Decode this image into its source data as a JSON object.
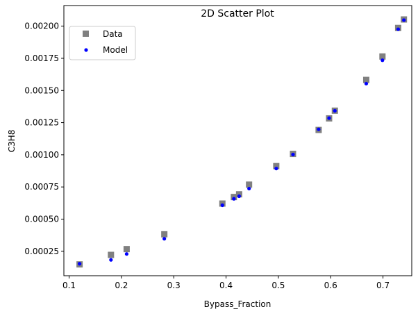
{
  "chart_data": {
    "type": "scatter",
    "title": "2D Scatter Plot",
    "xlabel": "Bypass_Fraction",
    "ylabel": "C3H8",
    "xlim": [
      0.09,
      0.755
    ],
    "ylim": [
      6e-05,
      0.00216
    ],
    "xticks": [
      0.1,
      0.2,
      0.3,
      0.4,
      0.5,
      0.6,
      0.7
    ],
    "xtick_labels": [
      "0.1",
      "0.2",
      "0.3",
      "0.4",
      "0.5",
      "0.6",
      "0.7"
    ],
    "yticks": [
      0.00025,
      0.0005,
      0.00075,
      0.001,
      0.00125,
      0.0015,
      0.00175,
      0.002
    ],
    "ytick_labels": [
      "0.00025",
      "0.00050",
      "0.00075",
      "0.00100",
      "0.00125",
      "0.00150",
      "0.00175",
      "0.00200"
    ],
    "grid": false,
    "legend_position": "upper-left",
    "series": [
      {
        "name": "Data",
        "marker": "square",
        "color": "#808080",
        "x": [
          0.12,
          0.18,
          0.21,
          0.282,
          0.393,
          0.415,
          0.425,
          0.444,
          0.496,
          0.528,
          0.577,
          0.597,
          0.608,
          0.668,
          0.699,
          0.729,
          0.74
        ],
        "y": [
          0.000148,
          0.000222,
          0.000267,
          0.000382,
          0.000621,
          0.000672,
          0.000693,
          0.000768,
          0.000912,
          0.001007,
          0.001193,
          0.001283,
          0.001343,
          0.001582,
          0.001764,
          0.001986,
          0.002052
        ]
      },
      {
        "name": "Model",
        "marker": "circle",
        "color": "#0000ff",
        "x": [
          0.12,
          0.18,
          0.21,
          0.282,
          0.393,
          0.415,
          0.425,
          0.444,
          0.496,
          0.528,
          0.577,
          0.597,
          0.608,
          0.668,
          0.699,
          0.729,
          0.74
        ],
        "y": [
          0.000153,
          0.000183,
          0.000229,
          0.000347,
          0.000608,
          0.000658,
          0.000678,
          0.000737,
          0.000893,
          0.001002,
          0.001198,
          0.001285,
          0.001342,
          0.001553,
          0.001735,
          0.001976,
          0.002047
        ]
      }
    ]
  }
}
